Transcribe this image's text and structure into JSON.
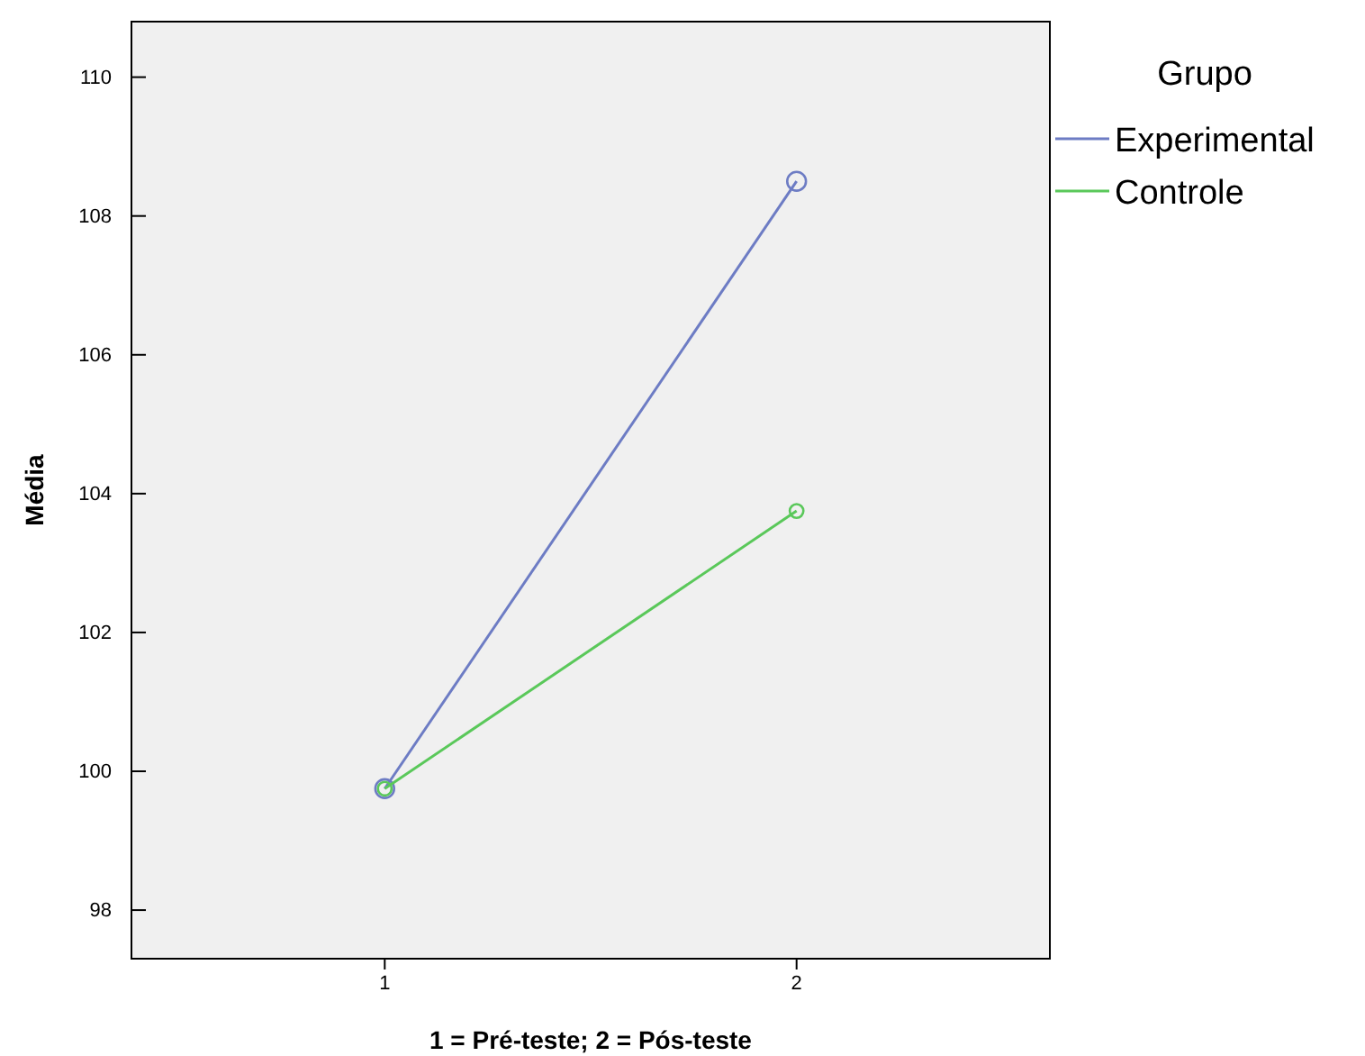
{
  "chart_data": {
    "type": "line",
    "xlabel": "1 = Pré-teste; 2 = Pós-teste",
    "ylabel": "Média",
    "legend_title": "Grupo",
    "categories": [
      "1",
      "2"
    ],
    "series": [
      {
        "name": "Experimental",
        "color": "#6d7cc4",
        "values": [
          99.75,
          108.5
        ]
      },
      {
        "name": "Controle",
        "color": "#5ac85a",
        "values": [
          99.75,
          103.75
        ]
      }
    ],
    "ylim": [
      97.3,
      110.8
    ],
    "yticks": [
      98,
      100,
      102,
      104,
      106,
      108,
      110
    ],
    "marker": "circle",
    "legend": "right",
    "grid": false
  }
}
